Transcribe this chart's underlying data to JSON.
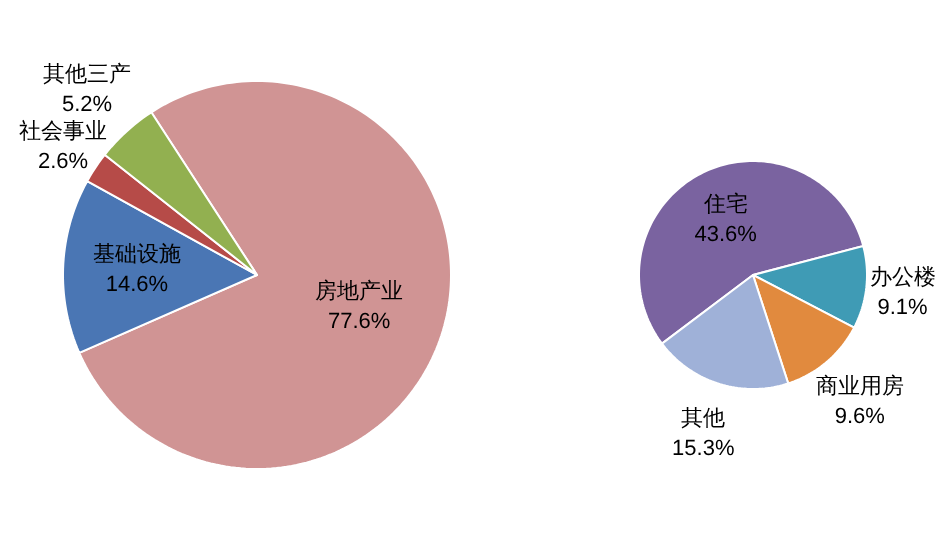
{
  "chart_data": [
    {
      "type": "pie",
      "categories": [
        "房地产业",
        "基础设施",
        "社会事业",
        "其他三产"
      ],
      "values": [
        77.6,
        14.6,
        2.6,
        5.2
      ],
      "colors": [
        "#d09494",
        "#4a76b4",
        "#b64b48",
        "#92b050"
      ],
      "value_labels": [
        "77.6%",
        "14.6%",
        "2.6%",
        "5.2%"
      ]
    },
    {
      "type": "pie",
      "categories": [
        "住宅",
        "办公楼",
        "商业用房",
        "其他"
      ],
      "values": [
        43.6,
        9.1,
        9.6,
        15.3
      ],
      "colors": [
        "#7a63a0",
        "#3f9bb5",
        "#e18a3e",
        "#9fb1d8"
      ],
      "value_labels": [
        "43.6%",
        "9.1%",
        "9.6%",
        "15.3%"
      ]
    }
  ]
}
